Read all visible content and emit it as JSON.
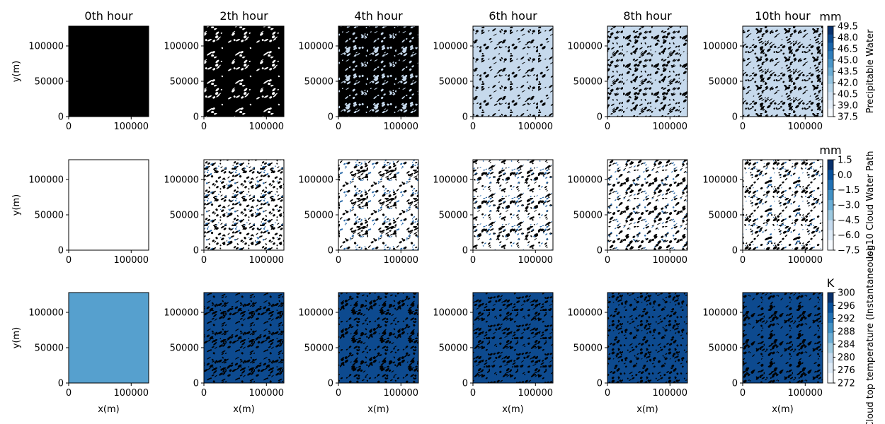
{
  "columns": [
    "0th hour",
    "2th hour",
    "4th hour",
    "6th hour",
    "8th hour",
    "10th hour"
  ],
  "xlabel": "x(m)",
  "ylabel": "y(m)",
  "x_ticks": [
    "0",
    "100000"
  ],
  "y_ticks": [
    "0",
    "50000",
    "100000"
  ],
  "chart_data": [
    {
      "type": "heatmap",
      "variable": "Precipitable Water",
      "colorbar": {
        "label": "Precipitable Water",
        "unit": "mm",
        "ticks": [
          "37.5",
          "39.0",
          "40.5",
          "42.0",
          "43.5",
          "45.0",
          "46.5",
          "48.0",
          "49.5"
        ],
        "range": [
          37.5,
          49.5
        ],
        "colors": [
          "#f7fbff",
          "#e3eef9",
          "#cfe1f2",
          "#b5d4e9",
          "#93c3df",
          "#6daed5",
          "#4b97c9",
          "#2f7ebc",
          "#1864aa",
          "#0a4a90",
          "#08306b"
        ]
      },
      "x_range": [
        0,
        128000
      ],
      "y_range": [
        0,
        128000
      ],
      "panels": [
        {
          "hour": 0,
          "pattern": "uniform",
          "fill": "#000000"
        },
        {
          "hour": 2,
          "pattern": "speckle",
          "base": "#000000",
          "spots": "#ffffff",
          "spot_fraction": 0.12
        },
        {
          "hour": 4,
          "pattern": "speckle",
          "base": "#000000",
          "spots": "#c6d9ec",
          "spot_fraction": 0.35
        },
        {
          "hour": 6,
          "pattern": "speckle",
          "base": "#c6d9ec",
          "spots": "#000000",
          "spot_fraction": 0.25
        },
        {
          "hour": 8,
          "pattern": "speckle",
          "base": "#c6d9ec",
          "spots": "#000000",
          "spot_fraction": 0.5
        },
        {
          "hour": 10,
          "pattern": "speckle",
          "base": "#c6d9ec",
          "spots": "#000000",
          "spot_fraction": 0.55
        }
      ]
    },
    {
      "type": "heatmap",
      "variable": "log10 Cloud Water Path",
      "colorbar": {
        "label": "log10 Cloud Water Path",
        "unit": "mm",
        "ticks": [
          "−7.5",
          "−6.0",
          "−4.5",
          "−3.0",
          "−1.5",
          "0.0",
          "1.5"
        ],
        "range": [
          -7.5,
          1.5
        ],
        "colors": [
          "#f7fbff",
          "#deebf7",
          "#c6dbef",
          "#9ecae1",
          "#6baed6",
          "#4292c6",
          "#2171b5",
          "#08519c",
          "#08306b"
        ]
      },
      "x_range": [
        0,
        128000
      ],
      "y_range": [
        0,
        128000
      ],
      "panels": [
        {
          "hour": 0,
          "pattern": "uniform",
          "fill": "#ffffff"
        },
        {
          "hour": 2,
          "pattern": "speckle",
          "base": "#ffffff",
          "spots": "#000000",
          "spot_fraction": 0.45,
          "accent": "#2c6aa8"
        },
        {
          "hour": 4,
          "pattern": "speckle",
          "base": "#ffffff",
          "spots": "#000000",
          "spot_fraction": 0.4,
          "accent": "#2c6aa8"
        },
        {
          "hour": 6,
          "pattern": "speckle",
          "base": "#ffffff",
          "spots": "#000000",
          "spot_fraction": 0.35,
          "accent": "#2c6aa8"
        },
        {
          "hour": 8,
          "pattern": "speckle",
          "base": "#ffffff",
          "spots": "#000000",
          "spot_fraction": 0.35,
          "accent": "#2c6aa8"
        },
        {
          "hour": 10,
          "pattern": "speckle",
          "base": "#ffffff",
          "spots": "#000000",
          "spot_fraction": 0.38,
          "accent": "#2c6aa8"
        }
      ]
    },
    {
      "type": "heatmap",
      "variable": "Cloud top temperature (Instantaneous)",
      "colorbar": {
        "label": "Cloud top temperature (Instantaneous)",
        "unit": "K",
        "ticks": [
          "272",
          "276",
          "280",
          "284",
          "288",
          "292",
          "296",
          "300"
        ],
        "range": [
          272,
          300
        ],
        "colors": [
          "#f7fbff",
          "#deebf7",
          "#c6dbef",
          "#9ecae1",
          "#6baed6",
          "#4292c6",
          "#2171b5",
          "#08519c",
          "#08306b"
        ]
      },
      "x_range": [
        0,
        128000
      ],
      "y_range": [
        0,
        128000
      ],
      "panels": [
        {
          "hour": 0,
          "pattern": "uniform",
          "fill": "#56a0ce"
        },
        {
          "hour": 2,
          "pattern": "speckle",
          "base": "#0d4a8f",
          "spots": "#000000",
          "spot_fraction": 0.5
        },
        {
          "hour": 4,
          "pattern": "speckle",
          "base": "#0d4a8f",
          "spots": "#000000",
          "spot_fraction": 0.5
        },
        {
          "hour": 6,
          "pattern": "speckle",
          "base": "#0d4a8f",
          "spots": "#000000",
          "spot_fraction": 0.5
        },
        {
          "hour": 8,
          "pattern": "speckle",
          "base": "#0d4a8f",
          "spots": "#000000",
          "spot_fraction": 0.5
        },
        {
          "hour": 10,
          "pattern": "speckle",
          "base": "#0d4a8f",
          "spots": "#000000",
          "spot_fraction": 0.5
        }
      ]
    }
  ]
}
